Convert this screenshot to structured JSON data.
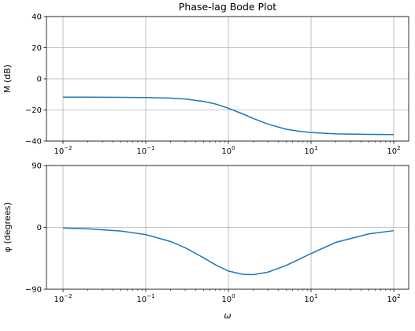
{
  "chart_data": [
    {
      "type": "line",
      "title": "Phase-lag Bode Plot",
      "xlabel": "",
      "ylabel": "M (dB)",
      "xscale": "log",
      "xlim": [
        0.01,
        100
      ],
      "ylim": [
        -40,
        40
      ],
      "grid": true,
      "x_ticks": [
        "10^-2",
        "10^-1",
        "10^0",
        "10^1",
        "10^2"
      ],
      "y_ticks": [
        "40",
        "20",
        "0",
        "−20",
        "−40"
      ],
      "series": [
        {
          "color": "#1f77b4",
          "x": [
            0.01,
            0.02,
            0.05,
            0.1,
            0.2,
            0.3,
            0.5,
            0.7,
            1.0,
            1.5,
            2.0,
            3.0,
            5.0,
            7.0,
            10.0,
            20.0,
            50.0,
            100.0
          ],
          "y": [
            -11.8,
            -11.8,
            -11.9,
            -12.0,
            -12.4,
            -13.0,
            -14.5,
            -16.2,
            -18.9,
            -22.6,
            -25.5,
            -29.1,
            -32.4,
            -33.6,
            -34.5,
            -35.4,
            -35.7,
            -35.8
          ]
        }
      ]
    },
    {
      "type": "line",
      "title": "",
      "xlabel": "ω",
      "ylabel": "φ (degrees)",
      "xscale": "log",
      "xlim": [
        0.01,
        100
      ],
      "ylim": [
        -90,
        90
      ],
      "grid": true,
      "x_ticks": [
        "10^-2",
        "10^-1",
        "10^0",
        "10^1",
        "10^2"
      ],
      "y_ticks": [
        "90",
        "0",
        "−90"
      ],
      "series": [
        {
          "color": "#1f77b4",
          "x": [
            0.01,
            0.02,
            0.05,
            0.1,
            0.2,
            0.3,
            0.5,
            0.7,
            1.0,
            1.5,
            2.0,
            3.0,
            5.0,
            7.0,
            10.0,
            20.0,
            50.0,
            100.0
          ],
          "y": [
            -1.0,
            -2.1,
            -5.3,
            -10.5,
            -20.6,
            -29.6,
            -44.2,
            -54.5,
            -63.5,
            -68.3,
            -68.8,
            -65.2,
            -55.4,
            -47.1,
            -38.0,
            -21.8,
            -9.5,
            -4.8
          ]
        }
      ]
    }
  ]
}
